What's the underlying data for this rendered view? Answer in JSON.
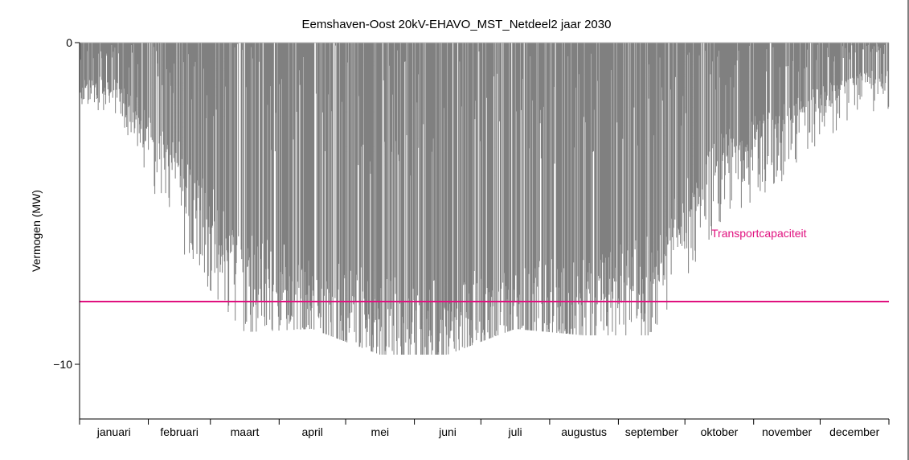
{
  "chart_data": {
    "type": "bar",
    "title": "Eemshaven-Oost 20kV-EHAVO_MST_Netdeel2 jaar 2030",
    "xlabel": "",
    "ylabel": "Vermogen (MW)",
    "ylim": [
      -11.7,
      0
    ],
    "yticks": [
      {
        "value": 0,
        "label": "0"
      },
      {
        "value": -10,
        "label": "−10"
      }
    ],
    "months": [
      "januari",
      "februari",
      "maart",
      "april",
      "mei",
      "juni",
      "juli",
      "augustus",
      "september",
      "oktober",
      "november",
      "december"
    ],
    "month_days": [
      31,
      28,
      31,
      30,
      31,
      30,
      31,
      31,
      30,
      31,
      30,
      31
    ],
    "series": [
      {
        "values_unit": "MW",
        "monthly_envelope_min": [
          -2.1,
          -6.4,
          -9.0,
          -8.9,
          -9.7,
          -9.7,
          -8.9,
          -9.1,
          -9.1,
          -5.6,
          -4.2,
          -2.2
        ],
        "monthly_typical_min": [
          -1.2,
          -3.5,
          -6.5,
          -7.5,
          -8.3,
          -8.3,
          -7.8,
          -7.6,
          -6.8,
          -3.2,
          -2.0,
          -1.0
        ]
      }
    ],
    "reference_line": {
      "label": "Transportcapaciteit",
      "value": -8.05,
      "color": "#e0117f"
    },
    "bar_color": "#808080",
    "grid": false
  }
}
